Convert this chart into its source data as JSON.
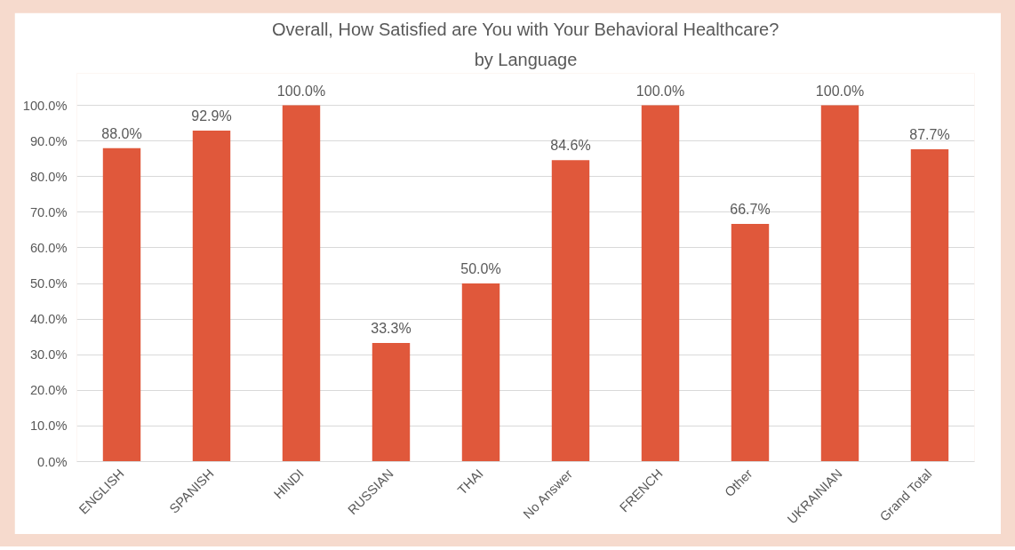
{
  "chart_data": {
    "type": "bar",
    "title": "Overall, How Satisfied are You with Your Behavioral Healthcare?",
    "subtitle": "by Language",
    "categories": [
      "ENGLISH",
      "SPANISH",
      "HINDI",
      "RUSSIAN",
      "THAI",
      "No Answer",
      "FRENCH",
      "Other",
      "UKRAINIAN",
      "Grand Total"
    ],
    "values": [
      88.0,
      92.9,
      100.0,
      33.3,
      50.0,
      84.6,
      100.0,
      66.7,
      100.0,
      87.7
    ],
    "value_labels": [
      "88.0%",
      "92.9%",
      "100.0%",
      "33.3%",
      "50.0%",
      "84.6%",
      "100.0%",
      "66.7%",
      "100.0%",
      "87.7%"
    ],
    "color": "#e0583b",
    "ylim": [
      0,
      100
    ],
    "yticks": [
      {
        "value": 0,
        "label": "0.0%"
      },
      {
        "value": 10,
        "label": "10.0%"
      },
      {
        "value": 20,
        "label": "20.0%"
      },
      {
        "value": 30,
        "label": "30.0%"
      },
      {
        "value": 40,
        "label": "40.0%"
      },
      {
        "value": 50,
        "label": "50.0%"
      },
      {
        "value": 60,
        "label": "60.0%"
      },
      {
        "value": 70,
        "label": "70.0%"
      },
      {
        "value": 80,
        "label": "80.0%"
      },
      {
        "value": 90,
        "label": "90.0%"
      },
      {
        "value": 100,
        "label": "100.0%"
      }
    ],
    "grid": "y"
  }
}
